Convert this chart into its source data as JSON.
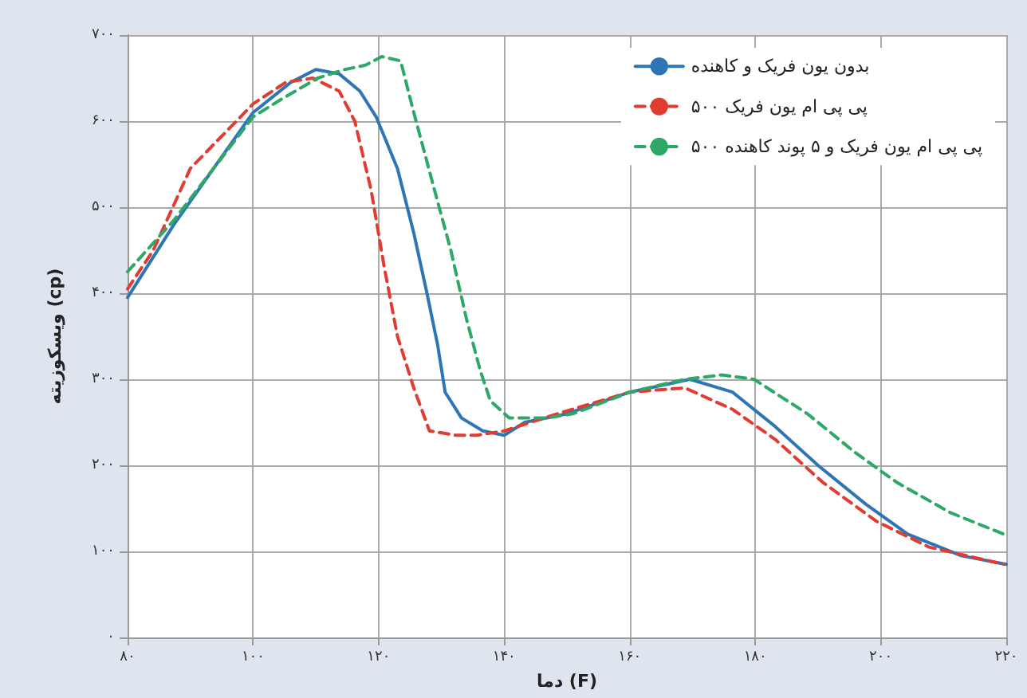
{
  "chart_data": {
    "type": "line",
    "xlabel": "دما (F)",
    "ylabel": "ویسکوزیته (cp)",
    "xlim": [
      80,
      220
    ],
    "ylim": [
      0,
      700
    ],
    "xticks": [
      {
        "value": 80,
        "label": "۸۰"
      },
      {
        "value": 100,
        "label": "۱۰۰"
      },
      {
        "value": 120,
        "label": "۱۲۰"
      },
      {
        "value": 140,
        "label": "۱۴۰"
      },
      {
        "value": 160,
        "label": "۱۶۰"
      },
      {
        "value": 180,
        "label": "۱۸۰"
      },
      {
        "value": 200,
        "label": "۲۰۰"
      },
      {
        "value": 220,
        "label": "۲۲۰"
      }
    ],
    "yticks": [
      {
        "value": 0,
        "label": "۰"
      },
      {
        "value": 100,
        "label": "۱۰۰"
      },
      {
        "value": 200,
        "label": "۲۰۰"
      },
      {
        "value": 300,
        "label": "۳۰۰"
      },
      {
        "value": 400,
        "label": "۴۰۰"
      },
      {
        "value": 500,
        "label": "۵۰۰"
      },
      {
        "value": 600,
        "label": "۶۰۰"
      },
      {
        "value": 700,
        "label": "۷۰۰"
      }
    ],
    "grid": true,
    "legend": "top right",
    "marker": "none",
    "series": [
      {
        "name": "بدون یون فریک و کاهنده",
        "color": "#2e75b6",
        "line_style": "solid",
        "x": [
          80,
          87.4,
          100,
          106,
          110,
          113.7,
          117,
          119.6,
          123,
          125.6,
          127.7,
          129.4,
          130.6,
          133.2,
          136.6,
          140,
          143.3,
          150,
          160,
          169.6,
          176.4,
          183.2,
          190,
          197.6,
          204.3,
          212.8,
          220
        ],
        "values": [
          395,
          480,
          610,
          645,
          660,
          655,
          635,
          605,
          545,
          470,
          400,
          340,
          285,
          255,
          240,
          235,
          250,
          260,
          285,
          300,
          285,
          245,
          200,
          155,
          120,
          95,
          85
        ]
      },
      {
        "name": "۵۰۰ پی پی ام یون فریک",
        "color": "#e03c31",
        "line_style": "dashed",
        "x": [
          80,
          84.1,
          90,
          100,
          105.2,
          109.5,
          113.7,
          116.2,
          118.8,
          120.9,
          123,
          125.6,
          128.1,
          132.3,
          135.7,
          140,
          148.5,
          160,
          168.8,
          176.4,
          183.2,
          190.8,
          199.3,
          207.7,
          219.6
        ],
        "values": [
          405,
          450,
          545,
          620,
          645,
          650,
          635,
          600,
          520,
          430,
          350,
          290,
          240,
          235,
          235,
          240,
          260,
          285,
          290,
          265,
          230,
          180,
          135,
          105,
          85
        ]
      },
      {
        "name": "۵۰۰ پی پی ام یون فریک و ۵ پوند کاهنده",
        "color": "#2ea866",
        "line_style": "dashed",
        "x": [
          80,
          87.4,
          100,
          104.4,
          110.3,
          114.6,
          117.9,
          120.5,
          123.5,
          125.6,
          128.9,
          131.5,
          134,
          136.2,
          137.8,
          140.8,
          146.7,
          151,
          160,
          168.8,
          174.7,
          179.8,
          188.3,
          195.9,
          202.6,
          211.1,
          219.6
        ],
        "values": [
          425,
          485,
          605,
          625,
          650,
          660,
          665,
          675,
          670,
          610,
          520,
          450,
          370,
          310,
          275,
          255,
          255,
          260,
          285,
          300,
          305,
          300,
          260,
          215,
          180,
          145,
          120
        ]
      }
    ]
  }
}
